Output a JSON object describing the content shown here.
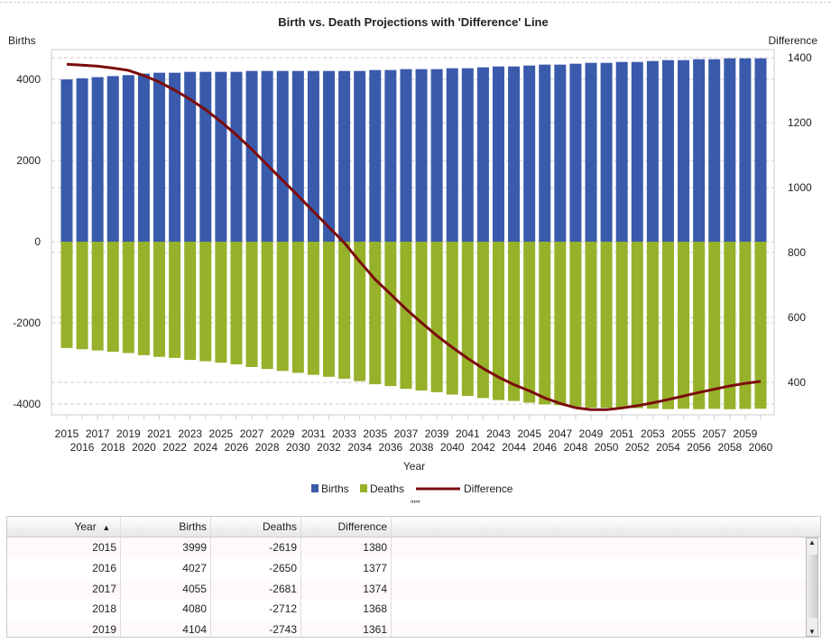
{
  "chart_data": {
    "type": "bar+line",
    "title": "Birth vs. Death Projections with 'Difference' Line",
    "xlabel": "Year",
    "ylabel_left": "Births",
    "ylabel_right": "Difference",
    "ylim_left": [
      -4200,
      4700
    ],
    "yticks_left": [
      -4000,
      -2000,
      0,
      2000,
      4000
    ],
    "ylim_right": [
      290,
      1425
    ],
    "yticks_right": [
      400,
      600,
      800,
      1000,
      1200,
      1400
    ],
    "grid": true,
    "legend_position": "bottom",
    "colors": {
      "Births": "#3a5aab",
      "Deaths": "#96b12a",
      "Difference": "#7b0c0c"
    },
    "categories": [
      2015,
      2016,
      2017,
      2018,
      2019,
      2020,
      2021,
      2022,
      2023,
      2024,
      2025,
      2026,
      2027,
      2028,
      2029,
      2030,
      2031,
      2032,
      2033,
      2034,
      2035,
      2036,
      2037,
      2038,
      2039,
      2040,
      2041,
      2042,
      2043,
      2044,
      2045,
      2046,
      2047,
      2048,
      2049,
      2050,
      2051,
      2052,
      2053,
      2054,
      2055,
      2056,
      2057,
      2058,
      2059,
      2060
    ],
    "series": [
      {
        "name": "Births",
        "axis": "left",
        "type": "bar",
        "values": [
          3999,
          4027,
          4055,
          4080,
          4104,
          4141,
          4163,
          4163,
          4185,
          4185,
          4185,
          4185,
          4207,
          4207,
          4207,
          4207,
          4207,
          4207,
          4207,
          4207,
          4230,
          4230,
          4252,
          4252,
          4252,
          4274,
          4274,
          4296,
          4318,
          4318,
          4341,
          4363,
          4363,
          4385,
          4407,
          4407,
          4429,
          4429,
          4452,
          4474,
          4474,
          4496,
          4496,
          4518,
          4518,
          4518
        ]
      },
      {
        "name": "Deaths",
        "axis": "left",
        "type": "bar",
        "values": [
          -2619,
          -2650,
          -2681,
          -2712,
          -2743,
          -2796,
          -2838,
          -2863,
          -2913,
          -2945,
          -2982,
          -3023,
          -3089,
          -3137,
          -3185,
          -3232,
          -3281,
          -3329,
          -3377,
          -3435,
          -3513,
          -3558,
          -3626,
          -3668,
          -3708,
          -3766,
          -3800,
          -3853,
          -3902,
          -3925,
          -3967,
          -4011,
          -4028,
          -4063,
          -4091,
          -4091,
          -4108,
          -4101,
          -4115,
          -4127,
          -4116,
          -4127,
          -4117,
          -4129,
          -4121,
          -4115
        ]
      },
      {
        "name": "Difference",
        "axis": "right",
        "type": "line",
        "values": [
          1380,
          1377,
          1374,
          1368,
          1361,
          1345,
          1325,
          1300,
          1272,
          1240,
          1203,
          1162,
          1118,
          1070,
          1022,
          975,
          926,
          878,
          830,
          772,
          717,
          672,
          626,
          584,
          544,
          508,
          474,
          443,
          416,
          393,
          374,
          352,
          335,
          322,
          316,
          316,
          321,
          328,
          337,
          347,
          358,
          369,
          379,
          389,
          397,
          403
        ]
      }
    ]
  },
  "table": {
    "columns": [
      "Year",
      "Births",
      "Deaths",
      "Difference"
    ],
    "sort_indicator": "▲",
    "rows": [
      [
        "2015",
        "3999",
        "-2619",
        "1380"
      ],
      [
        "2016",
        "4027",
        "-2650",
        "1377"
      ],
      [
        "2017",
        "4055",
        "-2681",
        "1374"
      ],
      [
        "2018",
        "4080",
        "-2712",
        "1368"
      ],
      [
        "2019",
        "4104",
        "-2743",
        "1361"
      ]
    ]
  }
}
